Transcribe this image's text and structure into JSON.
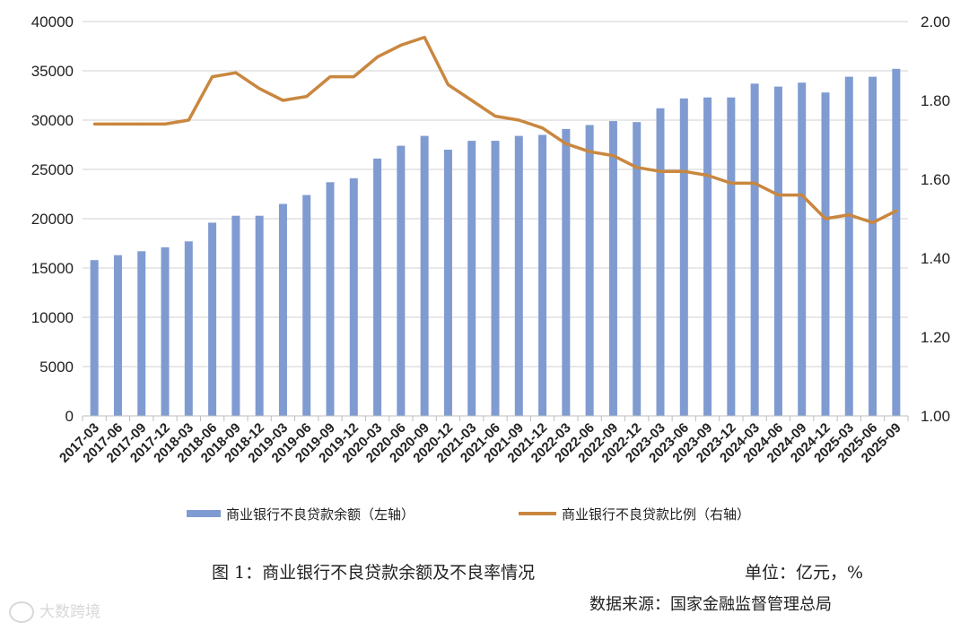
{
  "chart_data": {
    "type": "bar+line",
    "categories": [
      "2017-03",
      "2017-06",
      "2017-09",
      "2017-12",
      "2018-03",
      "2018-06",
      "2018-09",
      "2018-12",
      "2019-03",
      "2019-06",
      "2019-09",
      "2019-12",
      "2020-03",
      "2020-06",
      "2020-09",
      "2020-12",
      "2021-03",
      "2021-06",
      "2021-09",
      "2021-12",
      "2022-03",
      "2022-06",
      "2022-09",
      "2022-12",
      "2023-03",
      "2023-06",
      "2023-09",
      "2023-12",
      "2024-03",
      "2024-06",
      "2024-09",
      "2024-12",
      "2025-03",
      "2025-06",
      "2025-09"
    ],
    "series": [
      {
        "name": "商业银行不良贷款余额（左轴）",
        "type": "bar",
        "axis": "left",
        "color": "#7f9bd1",
        "values": [
          15800,
          16300,
          16700,
          17100,
          17700,
          19600,
          20300,
          20300,
          21500,
          22400,
          23700,
          24100,
          26100,
          27400,
          28400,
          27000,
          27900,
          27900,
          28400,
          28500,
          29100,
          29500,
          29900,
          29800,
          31200,
          32200,
          32300,
          32300,
          33700,
          33400,
          33800,
          32800,
          34400,
          34400,
          35200
        ]
      },
      {
        "name": "商业银行不良贷款比例（右轴）",
        "type": "line",
        "axis": "right",
        "color": "#c9873f",
        "values": [
          1.74,
          1.74,
          1.74,
          1.74,
          1.75,
          1.86,
          1.87,
          1.83,
          1.8,
          1.81,
          1.86,
          1.86,
          1.91,
          1.94,
          1.96,
          1.84,
          1.8,
          1.76,
          1.75,
          1.73,
          1.69,
          1.67,
          1.66,
          1.63,
          1.62,
          1.62,
          1.61,
          1.59,
          1.59,
          1.56,
          1.56,
          1.5,
          1.51,
          1.49,
          1.52
        ]
      }
    ],
    "y_left": {
      "min": 0,
      "max": 40000,
      "ticks": [
        "0",
        "5000",
        "10000",
        "15000",
        "20000",
        "25000",
        "30000",
        "35000",
        "40000"
      ]
    },
    "y_right": {
      "min": 1.0,
      "max": 2.0,
      "ticks": [
        "1.00",
        "1.20",
        "1.40",
        "1.60",
        "1.80",
        "2.00"
      ]
    },
    "grid": true,
    "legend_position": "bottom"
  },
  "caption": {
    "title": "图 1：商业银行不良贷款余额及不良率情况",
    "unit": "单位：亿元，%",
    "source": "数据来源：国家金融监督管理总局"
  },
  "watermark": "大数跨境"
}
